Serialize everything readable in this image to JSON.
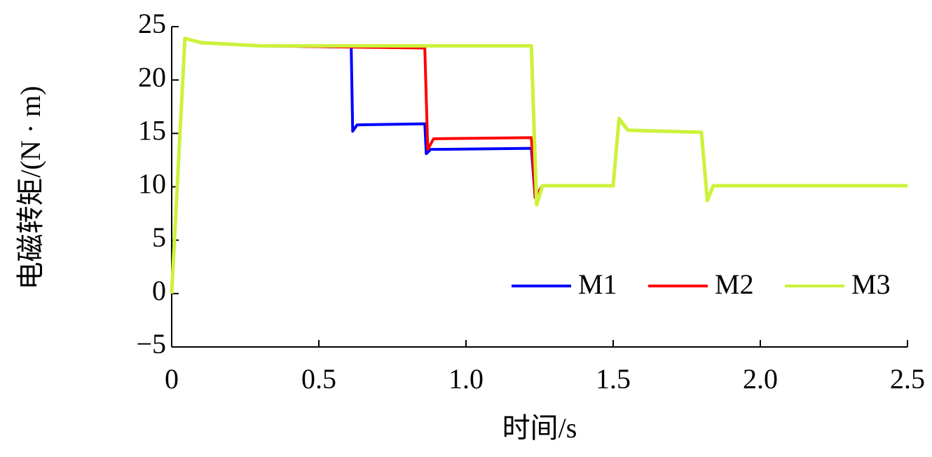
{
  "chart_data": {
    "type": "line",
    "xlabel": "时间/s",
    "ylabel": "电磁转矩/(N · m)",
    "xlim": [
      0,
      2.5
    ],
    "ylim": [
      -5,
      25
    ],
    "xticks": [
      0,
      0.5,
      {
        "value": 1,
        "label": "1.0"
      },
      1.5,
      {
        "value": 2,
        "label": "2.0"
      },
      2.5
    ],
    "yticks": [
      {
        "value": -5,
        "label": "−5"
      },
      0,
      5,
      10,
      15,
      20,
      25
    ],
    "legend": "lower right",
    "series": [
      {
        "name": "M1",
        "color": "#0000ff",
        "x": [
          0,
          0.045,
          0.1,
          0.3,
          0.61,
          0.615,
          0.63,
          0.86,
          0.865,
          0.88,
          1.222,
          1.235,
          1.26,
          1.5,
          1.52,
          1.55,
          1.8,
          1.82,
          1.84,
          2.5
        ],
        "values": [
          0,
          23.9,
          23.5,
          23.2,
          23.1,
          15.2,
          15.8,
          15.9,
          13.1,
          13.5,
          13.6,
          9.0,
          10.1,
          10.1,
          16.3,
          15.3,
          15.1,
          8.8,
          10.1,
          10.1
        ]
      },
      {
        "name": "M2",
        "color": "#ff0000",
        "x": [
          0,
          0.045,
          0.1,
          0.3,
          0.86,
          0.87,
          0.89,
          1.222,
          1.235,
          1.26,
          1.5,
          1.52,
          1.55,
          1.8,
          1.82,
          1.84,
          2.5
        ],
        "values": [
          0,
          23.9,
          23.5,
          23.2,
          23.0,
          13.5,
          14.5,
          14.6,
          9.0,
          10.1,
          10.1,
          16.3,
          15.3,
          15.1,
          8.8,
          10.1,
          10.1
        ]
      },
      {
        "name": "M3",
        "color": "#ccf23a",
        "x": [
          0,
          0.045,
          0.1,
          0.3,
          1.222,
          1.24,
          1.26,
          1.5,
          1.52,
          1.55,
          1.8,
          1.82,
          1.84,
          2.5
        ],
        "values": [
          0,
          23.9,
          23.5,
          23.2,
          23.2,
          8.3,
          10.1,
          10.1,
          16.4,
          15.3,
          15.1,
          8.7,
          10.1,
          10.1
        ]
      }
    ]
  }
}
